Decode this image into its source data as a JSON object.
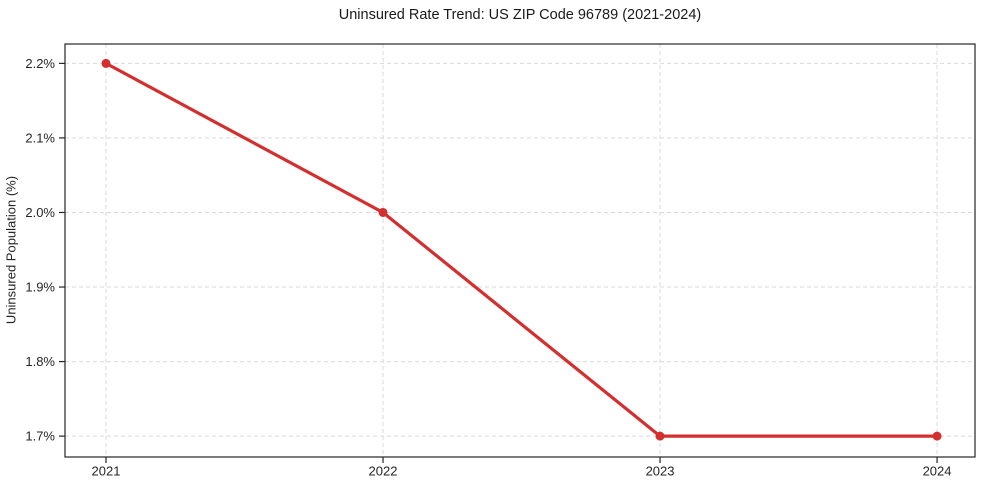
{
  "chart_data": {
    "type": "line",
    "title": "Uninsured Rate Trend: US ZIP Code 96789 (2021-2024)",
    "xlabel": "",
    "ylabel": "Uninsured Population (%)",
    "x": [
      2021,
      2022,
      2023,
      2024
    ],
    "values": [
      2.2,
      2.0,
      1.7,
      1.7
    ],
    "x_ticks": {
      "values": [
        2021,
        2022,
        2023,
        2024
      ],
      "labels": [
        "2021",
        "2022",
        "2023",
        "2024"
      ]
    },
    "y_ticks": {
      "values": [
        2.2,
        2.1,
        2.0,
        1.9,
        1.8,
        1.7
      ],
      "labels": [
        "2.2%",
        "2.1%",
        "2.0%",
        "1.9%",
        "1.8%",
        "1.7%"
      ]
    },
    "xlim": [
      2020.852,
      2024.137
    ],
    "ylim": [
      1.672,
      2.226
    ],
    "grid": true,
    "grid_style": "dashed",
    "legend": "none",
    "marker": "circle",
    "colors": {
      "line": "#d32f2f",
      "grid": "#d9d9d9",
      "axis": "#262626",
      "text": "#1a1a1a",
      "background": "#ffffff"
    }
  }
}
